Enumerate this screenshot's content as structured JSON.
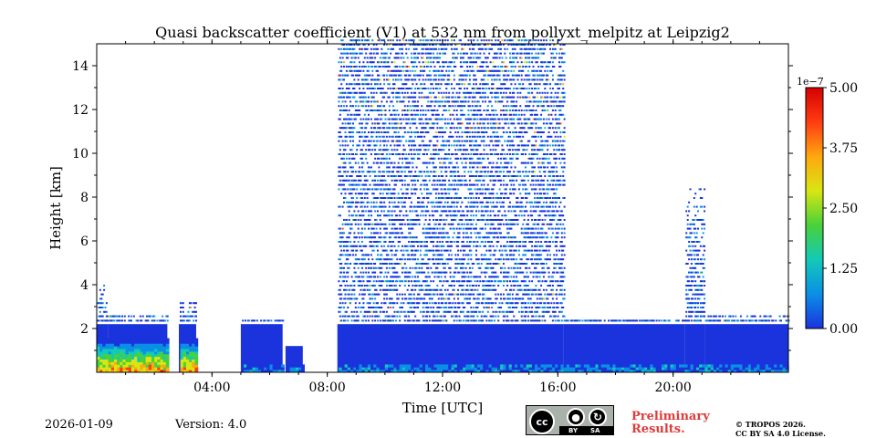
{
  "chart_data": {
    "type": "heatmap",
    "title": "Quasi backscatter coefficient (V1) at 532 nm from pollyxt_melpitz at Leipzig2",
    "xlabel": "Time [UTC]",
    "ylabel": "Height [km]",
    "xlim_hours": [
      0,
      24
    ],
    "ylim_km": [
      0,
      15
    ],
    "x_ticks": [
      {
        "hour": 4,
        "label": "04:00"
      },
      {
        "hour": 8,
        "label": "08:00"
      },
      {
        "hour": 12,
        "label": "12:00"
      },
      {
        "hour": 16,
        "label": "16:00"
      },
      {
        "hour": 20,
        "label": "20:00"
      }
    ],
    "y_ticks": [
      {
        "km": 2,
        "label": "2"
      },
      {
        "km": 4,
        "label": "4"
      },
      {
        "km": 6,
        "label": "6"
      },
      {
        "km": 8,
        "label": "8"
      },
      {
        "km": 10,
        "label": "10"
      },
      {
        "km": 12,
        "label": "12"
      },
      {
        "km": 14,
        "label": "14"
      }
    ],
    "colorbar": {
      "min": 0.0,
      "max": 5.0,
      "scale_label": "1e−7",
      "ticks": [
        {
          "value": 0.0,
          "label": "0.00"
        },
        {
          "value": 1.25,
          "label": "1.25"
        },
        {
          "value": 2.5,
          "label": "2.50"
        },
        {
          "value": 3.75,
          "label": "3.75"
        },
        {
          "value": 5.0,
          "label": "5.00"
        }
      ],
      "colors": [
        "#1a33dd",
        "#0a8fe6",
        "#13c9b8",
        "#49d13a",
        "#d8e612",
        "#ffa70f",
        "#ff3c12",
        "#d40000"
      ]
    },
    "gap_intervals_hours": [
      [
        2.45,
        2.85
      ],
      [
        3.45,
        5.0
      ],
      [
        6.45,
        6.55
      ],
      [
        7.15,
        8.35
      ]
    ],
    "approx_profile_tops_km": [
      {
        "from": 0.0,
        "to": 0.4,
        "top_km": 3.9
      },
      {
        "from": 0.4,
        "to": 2.45,
        "top_km": 2.6
      },
      {
        "from": 2.85,
        "to": 3.45,
        "top_km": 3.2
      },
      {
        "from": 5.0,
        "to": 6.45,
        "top_km": 2.3
      },
      {
        "from": 6.55,
        "to": 7.15,
        "top_km": 1.2
      },
      {
        "from": 8.35,
        "to": 16.2,
        "top_km": 15.0
      },
      {
        "from": 16.2,
        "to": 20.4,
        "top_km": 2.4
      },
      {
        "from": 20.4,
        "to": 21.1,
        "top_km": 8.4
      },
      {
        "from": 21.1,
        "to": 24.0,
        "top_km": 2.5
      }
    ],
    "aerosol_layer_km": [
      0.0,
      1.5
    ],
    "aerosol_layer_peak_value": 4.2
  },
  "footer": {
    "date": "2026-01-09",
    "version": "Version: 4.0",
    "preliminary_line1": "Preliminary",
    "preliminary_line2": "Results.",
    "copyright_line1": "© TROPOS 2026.",
    "copyright_line2": "CC BY SA 4.0 License.",
    "license_badge": {
      "cc": "cc",
      "by": "BY",
      "sa": "SA"
    }
  }
}
